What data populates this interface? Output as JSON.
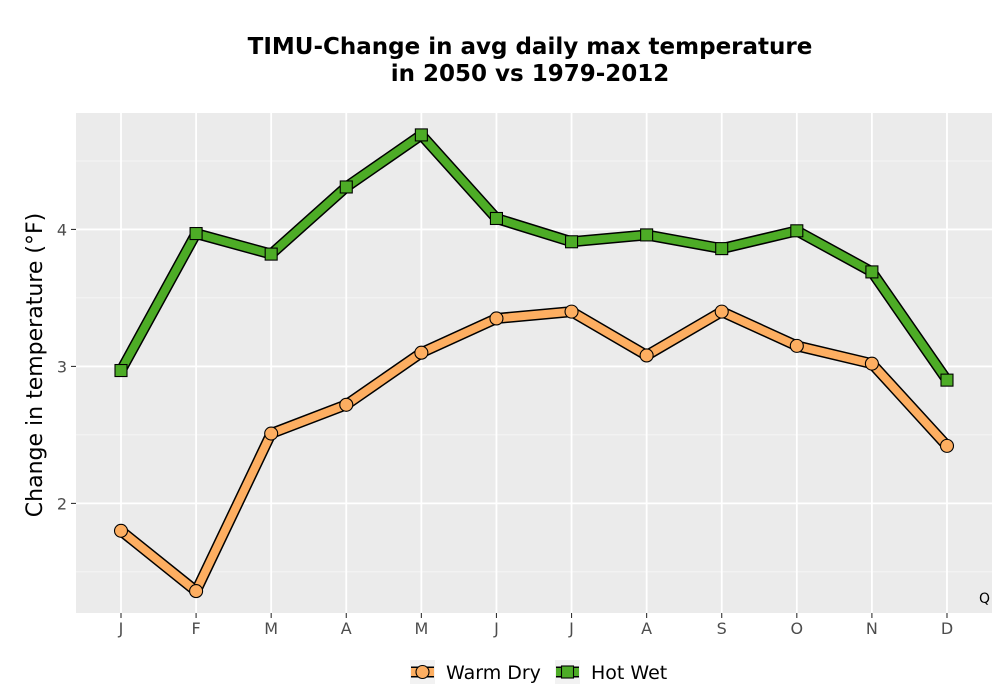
{
  "chart_data": {
    "type": "line",
    "title": [
      "TIMU-Change in avg daily max temperature",
      "in 2050 vs 1979-2012"
    ],
    "xlabel": "",
    "ylabel": "Change in temperature (°F)",
    "categories": [
      "J",
      "F",
      "M",
      "A",
      "M",
      "J",
      "J",
      "A",
      "S",
      "O",
      "N",
      "D"
    ],
    "yticks": [
      2,
      3,
      4
    ],
    "ylim": [
      1.2,
      4.85
    ],
    "grid": true,
    "legend_position": "bottom",
    "corner_note": "Q",
    "series": [
      {
        "name": "Warm Dry",
        "color": "#FDAE61",
        "marker": "circle",
        "values": [
          1.8,
          1.36,
          2.51,
          2.72,
          3.1,
          3.35,
          3.4,
          3.08,
          3.4,
          3.15,
          3.02,
          2.42
        ]
      },
      {
        "name": "Hot Wet",
        "color": "#4DAC26",
        "marker": "square",
        "values": [
          2.97,
          3.97,
          3.82,
          4.31,
          4.69,
          4.08,
          3.91,
          3.96,
          3.86,
          3.99,
          3.69,
          2.9
        ]
      }
    ]
  }
}
